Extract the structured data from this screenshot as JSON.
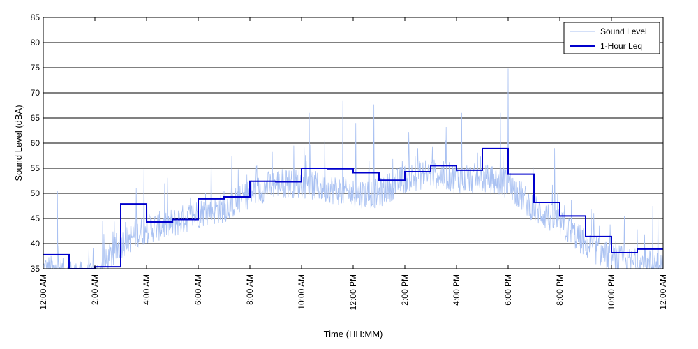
{
  "chart_data": {
    "type": "line",
    "xlabel": "Time (HH:MM)",
    "ylabel": "Sound Level (dBA)",
    "xlim": [
      0,
      24
    ],
    "ylim": [
      35,
      85
    ],
    "grid": "horizontal",
    "legend_position": "top-right",
    "x_ticks": [
      0,
      2,
      4,
      6,
      8,
      10,
      12,
      14,
      16,
      18,
      20,
      22,
      24
    ],
    "x_tick_labels": [
      "12:00 AM",
      "2:00 AM",
      "4:00 AM",
      "6:00 AM",
      "8:00 AM",
      "10:00 AM",
      "12:00 PM",
      "2:00 PM",
      "4:00 PM",
      "6:00 PM",
      "8:00 PM",
      "10:00 PM",
      "12:00 AM"
    ],
    "y_ticks": [
      35,
      40,
      45,
      50,
      55,
      60,
      65,
      70,
      75,
      80,
      85
    ],
    "y_tick_labels": [
      "35",
      "40",
      "45",
      "50",
      "55",
      "60",
      "65",
      "70",
      "75",
      "80",
      "85"
    ],
    "series": [
      {
        "name": "Sound Level",
        "color": "#a9c1f2",
        "approximate_hourly_baseline": [
          35,
          34,
          33,
          40,
          43,
          44,
          46,
          47,
          50,
          52,
          52,
          51,
          50,
          50,
          53,
          54,
          53,
          53,
          52,
          47,
          44,
          40,
          37,
          36
        ],
        "notable_peaks": [
          {
            "x": 0.55,
            "y": 50.5
          },
          {
            "x": 2.3,
            "y": 44.5
          },
          {
            "x": 3.6,
            "y": 51
          },
          {
            "x": 3.9,
            "y": 54.8
          },
          {
            "x": 4.7,
            "y": 52
          },
          {
            "x": 6.5,
            "y": 57
          },
          {
            "x": 7.3,
            "y": 57.5
          },
          {
            "x": 9.7,
            "y": 59.5
          },
          {
            "x": 10.3,
            "y": 66
          },
          {
            "x": 10.9,
            "y": 60.5
          },
          {
            "x": 11.6,
            "y": 68.5
          },
          {
            "x": 12.1,
            "y": 64
          },
          {
            "x": 12.8,
            "y": 67.7
          },
          {
            "x": 14.5,
            "y": 59
          },
          {
            "x": 15.6,
            "y": 63.2
          },
          {
            "x": 16.2,
            "y": 66
          },
          {
            "x": 17.7,
            "y": 66
          },
          {
            "x": 18.0,
            "y": 74.8
          },
          {
            "x": 19.8,
            "y": 59
          },
          {
            "x": 22.5,
            "y": 45.5
          },
          {
            "x": 23.6,
            "y": 47.5
          },
          {
            "x": 23.8,
            "y": 46
          }
        ]
      },
      {
        "name": "1-Hour Leq",
        "color": "#0000cc",
        "step": true,
        "values": [
          37.8,
          32.5,
          35.4,
          47.9,
          44.3,
          44.8,
          48.9,
          49.3,
          52.4,
          52.3,
          55.0,
          54.9,
          54.1,
          52.6,
          54.3,
          55.5,
          54.6,
          58.9,
          53.8,
          48.2,
          45.5,
          41.4,
          38.2,
          38.9
        ]
      }
    ]
  }
}
